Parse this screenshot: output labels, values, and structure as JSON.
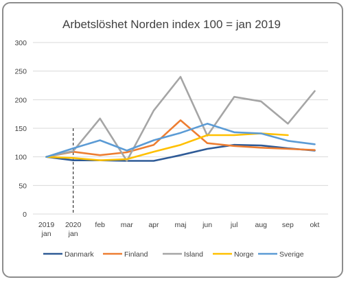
{
  "chart_data": {
    "type": "line",
    "title": "Arbetslöshet Norden index 100 = jan 2019",
    "xlabel": "",
    "ylabel": "",
    "ylim": [
      0,
      300
    ],
    "yticks": [
      0,
      50,
      100,
      150,
      200,
      250,
      300
    ],
    "grid": true,
    "legend_position": "bottom",
    "categories": [
      [
        "2019",
        "jan"
      ],
      [
        "2020",
        "jan"
      ],
      [
        "feb"
      ],
      [
        "mar"
      ],
      [
        "apr"
      ],
      [
        "maj"
      ],
      [
        "jun"
      ],
      [
        "jul"
      ],
      [
        "aug"
      ],
      [
        "sep"
      ],
      [
        "okt"
      ]
    ],
    "reference_line_category_index": 1,
    "series": [
      {
        "name": "Danmark",
        "color": "#2e5a96",
        "values": [
          100,
          94,
          94,
          93,
          93,
          103,
          114,
          121,
          120,
          115,
          111
        ]
      },
      {
        "name": "Finland",
        "color": "#ed7d31",
        "values": [
          100,
          109,
          103,
          108,
          121,
          164,
          124,
          119,
          116,
          114,
          112
        ]
      },
      {
        "name": "Island",
        "color": "#a5a5a5",
        "values": [
          100,
          110,
          167,
          93,
          181,
          240,
          137,
          205,
          197,
          158,
          215
        ]
      },
      {
        "name": "Norge",
        "color": "#ffc000",
        "values": [
          100,
          98,
          94,
          96,
          109,
          121,
          138,
          138,
          141,
          138,
          null
        ]
      },
      {
        "name": "Sverige",
        "color": "#5b9bd5",
        "values": [
          100,
          115,
          129,
          111,
          129,
          142,
          158,
          143,
          141,
          128,
          122
        ]
      }
    ]
  }
}
